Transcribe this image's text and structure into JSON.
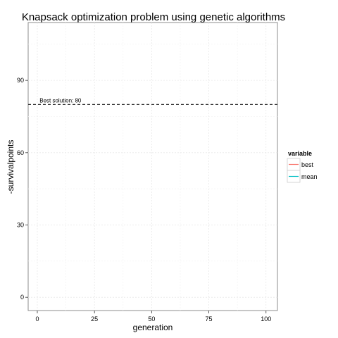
{
  "chart_data": {
    "type": "line",
    "title": "Knapsack optimization problem using genetic algorithms",
    "xlabel": "generation",
    "ylabel": "-survivalpoints",
    "xlim": [
      -4,
      105
    ],
    "ylim": [
      -5.5,
      114
    ],
    "x_ticks": [
      0,
      25,
      50,
      75,
      100
    ],
    "y_ticks": [
      0,
      30,
      60,
      90
    ],
    "grid": true,
    "legend_position": "right",
    "legend": {
      "title": "variable",
      "items": [
        {
          "name": "best",
          "color": "#F8766D"
        },
        {
          "name": "mean",
          "color": "#00BFC4"
        }
      ]
    },
    "series": [
      {
        "name": "best",
        "color": "#F8766D",
        "points": []
      },
      {
        "name": "mean",
        "color": "#00BFC4",
        "points": []
      }
    ],
    "reference_line": {
      "orientation": "horizontal",
      "y": 80,
      "style": "dashed",
      "color": "#333333",
      "label": "Best solution: 80",
      "label_x": 1
    }
  }
}
